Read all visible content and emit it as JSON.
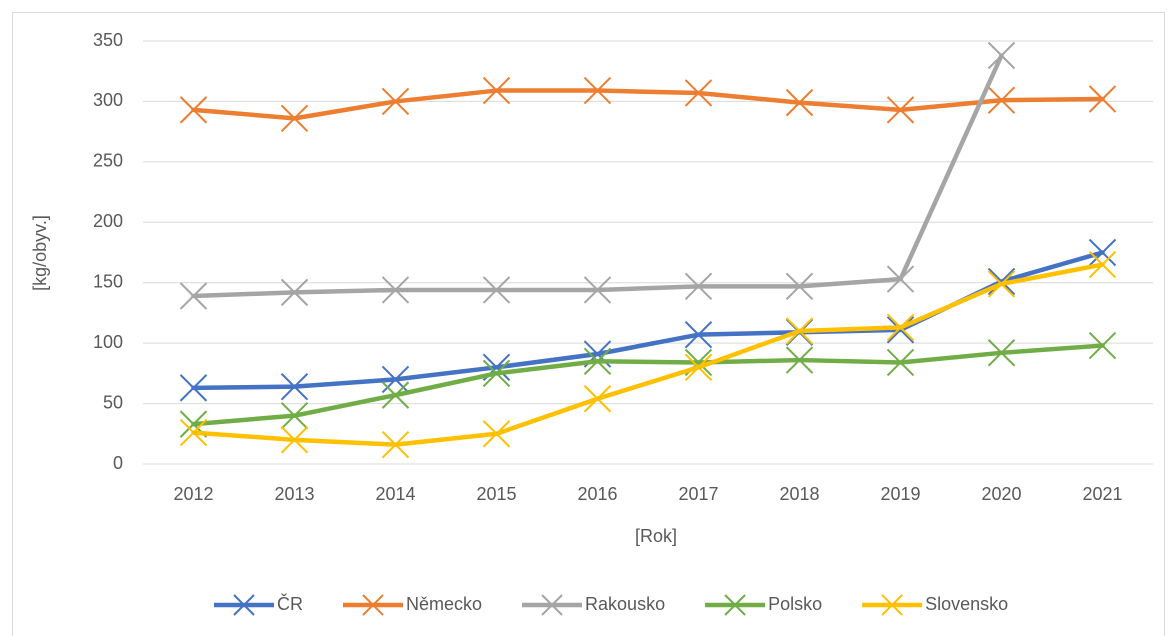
{
  "chart_data": {
    "type": "line",
    "categories": [
      "2012",
      "2013",
      "2014",
      "2015",
      "2016",
      "2017",
      "2018",
      "2019",
      "2020",
      "2021"
    ],
    "series": [
      {
        "name": "ČR",
        "color": "#4472c4",
        "values": [
          63,
          64,
          70,
          80,
          91,
          107,
          109,
          111,
          151,
          175
        ]
      },
      {
        "name": "Německo",
        "color": "#ed7d31",
        "values": [
          293,
          286,
          300,
          309,
          309,
          307,
          299,
          293,
          301,
          302
        ]
      },
      {
        "name": "Rakousko",
        "color": "#a5a5a5",
        "values": [
          139,
          142,
          144,
          144,
          144,
          147,
          147,
          153,
          338,
          null
        ]
      },
      {
        "name": "Polsko",
        "color": "#70ad47",
        "values": [
          33,
          40,
          57,
          75,
          85,
          84,
          86,
          84,
          92,
          98
        ]
      },
      {
        "name": "Slovensko",
        "color": "#ffc000",
        "values": [
          26,
          20,
          16,
          25,
          54,
          80,
          110,
          113,
          149,
          165
        ]
      }
    ],
    "ylim": [
      0,
      350
    ],
    "yticks": [
      0,
      50,
      100,
      150,
      200,
      250,
      300,
      350
    ],
    "ylabel": "[kg/obyv.]",
    "xlabel": "[Rok]",
    "grid": true,
    "legend": "bottom"
  }
}
